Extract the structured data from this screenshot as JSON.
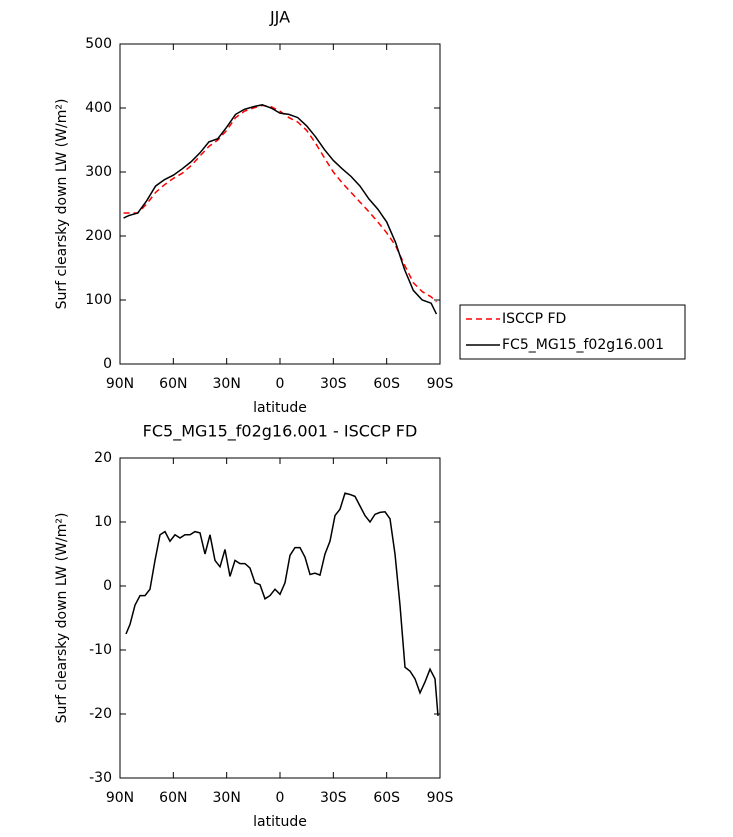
{
  "chart_data": [
    {
      "type": "line",
      "title": "JJA",
      "xlabel": "latitude",
      "ylabel": "Surf clearsky down LW (W/m²)",
      "x": [
        88,
        85,
        80,
        75,
        70,
        65,
        60,
        55,
        50,
        45,
        40,
        35,
        30,
        25,
        20,
        15,
        10,
        5,
        0,
        -5,
        -10,
        -15,
        -20,
        -25,
        -30,
        -35,
        -40,
        -45,
        -50,
        -55,
        -60,
        -65,
        -70,
        -75,
        -80,
        -85,
        -88
      ],
      "series": [
        {
          "name": "ISCCP FD",
          "color": "#ff0000",
          "linestyle": "dashed",
          "values": [
            236,
            236,
            236,
            250,
            268,
            280,
            290,
            298,
            310,
            325,
            340,
            350,
            365,
            385,
            395,
            400,
            404,
            402,
            395,
            385,
            378,
            365,
            345,
            322,
            300,
            283,
            268,
            253,
            238,
            222,
            205,
            185,
            155,
            127,
            113,
            105,
            97
          ]
        },
        {
          "name": "FC5_MG15_f02g16.001",
          "color": "#000000",
          "linestyle": "solid",
          "values": [
            228,
            232,
            236,
            255,
            278,
            288,
            295,
            305,
            316,
            330,
            347,
            352,
            370,
            390,
            398,
            402,
            405,
            400,
            392,
            390,
            385,
            372,
            355,
            335,
            318,
            305,
            293,
            278,
            258,
            242,
            222,
            190,
            148,
            115,
            100,
            95,
            78
          ]
        }
      ],
      "xlim": [
        90,
        -90
      ],
      "xticks": [
        {
          "value": 90,
          "label": "90N"
        },
        {
          "value": 60,
          "label": "60N"
        },
        {
          "value": 30,
          "label": "30N"
        },
        0,
        {
          "value": -30,
          "label": "30S"
        },
        {
          "value": -60,
          "label": "60S"
        },
        {
          "value": -90,
          "label": "90S"
        }
      ],
      "ylim": [
        0,
        500
      ],
      "yticks": [
        0,
        100,
        200,
        300,
        400,
        500
      ],
      "legend": "right"
    },
    {
      "type": "line",
      "title": "FC5_MG15_f02g16.001 - ISCCP FD",
      "xlabel": "latitude",
      "ylabel": "Surf clearsky down LW (W/m²)",
      "x": [
        86.63,
        84.38,
        81.56,
        78.75,
        75.94,
        73.13,
        70.31,
        67.5,
        64.69,
        61.88,
        59.06,
        56.25,
        53.44,
        50.63,
        47.81,
        45,
        42.19,
        39.38,
        36.56,
        33.75,
        30.94,
        28.13,
        25.31,
        22.5,
        19.69,
        16.88,
        14.06,
        11.25,
        8.44,
        5.63,
        2.81,
        0,
        -2.81,
        -5.63,
        -8.44,
        -11.25,
        -14.06,
        -16.88,
        -19.69,
        -22.5,
        -25.31,
        -28.13,
        -30.94,
        -33.75,
        -36.56,
        -39.38,
        -42.19,
        -45,
        -47.81,
        -50.63,
        -53.44,
        -56.25,
        -59.06,
        -61.88,
        -64.69,
        -67.5,
        -70.31,
        -73.13,
        -75.94,
        -78.75,
        -81.56,
        -84.38,
        -87.19,
        -88.88
      ],
      "values": [
        -7.5,
        -6,
        -3,
        -1.5,
        -1.5,
        -0.5,
        4,
        8,
        8.5,
        7,
        8,
        7.5,
        8,
        8,
        8.5,
        8.3,
        5,
        8,
        4,
        3,
        5.7,
        1.5,
        4,
        3.5,
        3.5,
        2.8,
        0.5,
        0.2,
        -2,
        -1.5,
        -0.5,
        -1.3,
        0.5,
        4.8,
        6,
        6,
        4.5,
        1.8,
        2,
        1.7,
        5,
        7,
        11,
        12,
        14.5,
        14.3,
        14,
        12.5,
        11,
        10,
        11.2,
        11.5,
        11.6,
        10.5,
        5,
        -3,
        -12.7,
        -13.3,
        -14.5,
        -16.7,
        -15,
        -13,
        -14.5,
        -20.3
      ],
      "color": "#000000",
      "linestyle": "solid",
      "xlim": [
        90,
        -90
      ],
      "xticks": [
        {
          "value": 90,
          "label": "90N"
        },
        {
          "value": 60,
          "label": "60N"
        },
        {
          "value": 30,
          "label": "30N"
        },
        0,
        {
          "value": -30,
          "label": "30S"
        },
        {
          "value": -60,
          "label": "60S"
        },
        {
          "value": -90,
          "label": "90S"
        }
      ],
      "ylim": [
        -30,
        20
      ],
      "yticks": [
        -30,
        -20,
        -10,
        0,
        10,
        20
      ]
    }
  ]
}
